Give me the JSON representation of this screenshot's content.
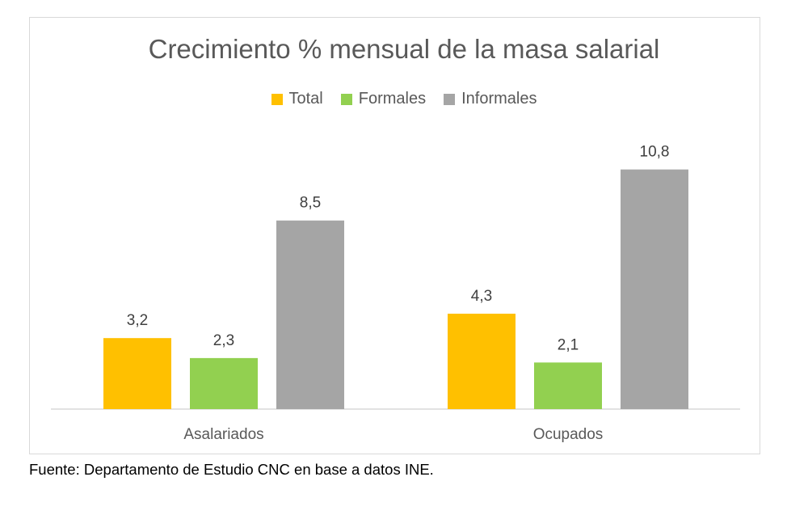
{
  "chart_data": {
    "type": "bar",
    "title": "Crecimiento % mensual de la masa salarial",
    "categories": [
      "Asalariados",
      "Ocupados"
    ],
    "series": [
      {
        "name": "Total",
        "values": [
          3.2,
          4.3
        ],
        "labels": [
          "3,2",
          "4,3"
        ],
        "color": "#FFC000"
      },
      {
        "name": "Formales",
        "values": [
          2.3,
          2.1
        ],
        "labels": [
          "2,3",
          "2,1"
        ],
        "color": "#92D050"
      },
      {
        "name": "Informales",
        "values": [
          8.5,
          10.8
        ],
        "labels": [
          "8,5",
          "10,8"
        ],
        "color": "#A5A5A5"
      }
    ],
    "ylim": [
      0,
      12.9
    ],
    "grid": false,
    "legend_position": "top"
  },
  "footer": {
    "source": "Fuente: Departamento de Estudio CNC en base a datos INE."
  }
}
